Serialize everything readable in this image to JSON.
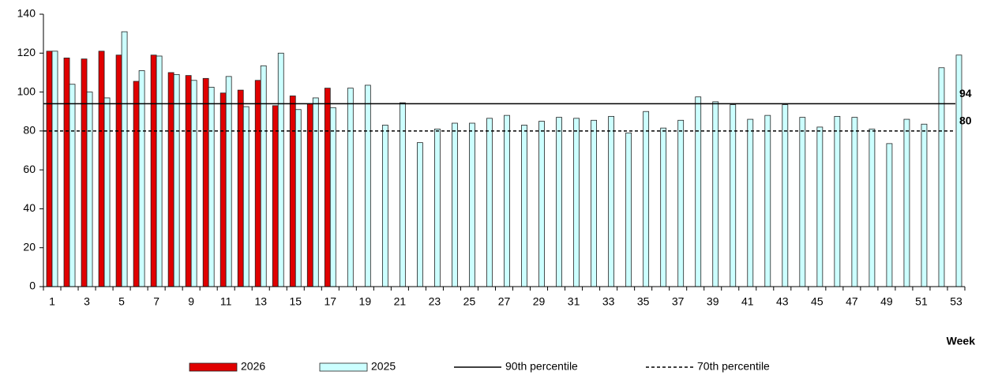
{
  "chart_data": {
    "type": "bar",
    "x_label": "Week",
    "categories": [
      1,
      null,
      3,
      null,
      5,
      null,
      7,
      null,
      9,
      null,
      11,
      null,
      13,
      null,
      15,
      null,
      17,
      null,
      19,
      null,
      21,
      null,
      23,
      null,
      25,
      null,
      27,
      null,
      29,
      null,
      31,
      null,
      33,
      null,
      35,
      null,
      37,
      null,
      39,
      null,
      41,
      null,
      43,
      null,
      45,
      null,
      47,
      null,
      49,
      null,
      51,
      null,
      53
    ],
    "series": [
      {
        "name": "2026",
        "color": "#e00000",
        "values": [
          121,
          117.5,
          117,
          121,
          119,
          105.5,
          119,
          110,
          108.5,
          107,
          99.5,
          101,
          106,
          93,
          98,
          94,
          102,
          null,
          null,
          null,
          null,
          null,
          null,
          null,
          null,
          null,
          null,
          null,
          null,
          null,
          null,
          null,
          null,
          null,
          null,
          null,
          null,
          null,
          null,
          null,
          null,
          null,
          null,
          null,
          null,
          null,
          null,
          null,
          null,
          null,
          null,
          null,
          null
        ]
      },
      {
        "name": "2025",
        "color": "#ccffff",
        "values": [
          121,
          104,
          100,
          97,
          131,
          111,
          118.5,
          109,
          106,
          102.5,
          108,
          92.5,
          113.5,
          120,
          91,
          97,
          92,
          102,
          103.5,
          83,
          94.5,
          74,
          81,
          84,
          84,
          86.5,
          88,
          83,
          85,
          87,
          86.5,
          85.5,
          87.5,
          79,
          90,
          81.5,
          85.5,
          97.5,
          95,
          93.5,
          86,
          88,
          93.5,
          87,
          82,
          87.5,
          87,
          81,
          73.5,
          86,
          83.5,
          112.5,
          119
        ]
      }
    ],
    "reference_lines": [
      {
        "name": "90th percentile",
        "value": 94,
        "style": "solid",
        "color": "#000000"
      },
      {
        "name": "70th percentile",
        "value": 80,
        "style": "dashed",
        "color": "#000000"
      }
    ],
    "ylim": [
      0,
      140
    ],
    "yticks": [
      0,
      20,
      40,
      60,
      80,
      100,
      120,
      140
    ],
    "grid": false
  }
}
